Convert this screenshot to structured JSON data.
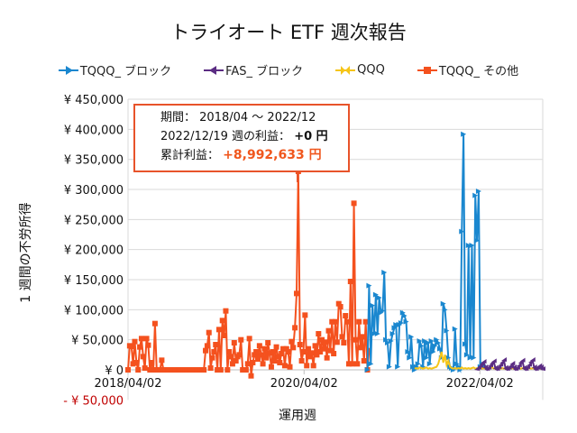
{
  "chart_data": {
    "type": "line",
    "title": "トライオート ETF 週次報告",
    "xlabel": "運用週",
    "ylabel": "1 週間の不労所得",
    "x_start": "2018/04/02",
    "x_end": "2022/12/19",
    "x_interval": "weekly",
    "x_ticks": [
      "2018/04/02",
      "2020/04/02",
      "2022/04/02"
    ],
    "ylim": [
      -50000,
      450000
    ],
    "y_ticks": [
      -50000,
      0,
      50000,
      100000,
      150000,
      200000,
      250000,
      300000,
      350000,
      400000,
      450000
    ],
    "y_tick_labels": [
      "- ¥ 50,000",
      "¥ 0",
      "¥ 50,000",
      "¥ 100,000",
      "¥ 150,000",
      "¥ 200,000",
      "¥ 250,000",
      "¥ 300,000",
      "¥ 350,000",
      "¥ 400,000",
      "¥ 450,000"
    ],
    "negative_tick_color": "#c00000",
    "grid": true,
    "legend": "top",
    "series": [
      {
        "name": "TQQQ_ ブロック",
        "color": "#1a87cf",
        "marker": "triangle-right",
        "start": "2020/12/21",
        "values": [
          0,
          140000,
          10000,
          107000,
          60000,
          125000,
          60000,
          120000,
          95000,
          98000,
          162000,
          50000,
          45000,
          5000,
          48000,
          60000,
          70000,
          75000,
          5000,
          75000,
          78000,
          95000,
          90000,
          80000,
          30000,
          20000,
          55000,
          5000,
          0,
          5000,
          10000,
          48000,
          40000,
          5000,
          48000,
          20000,
          45000,
          10000,
          48000,
          30000,
          40000,
          50000,
          45000,
          35000,
          20000,
          110000,
          100000,
          65000,
          20000,
          5000,
          3000,
          0,
          68000,
          10000,
          5000,
          0,
          230000,
          392000,
          43000,
          25000,
          207000,
          20000,
          207000,
          20000,
          290000,
          215000,
          297000,
          5000,
          10000,
          8000,
          5000
        ]
      },
      {
        "name": "FAS_ ブロック",
        "color": "#5b2c83",
        "marker": "triangle-left",
        "start": "2022/03/21",
        "values": [
          0,
          2000,
          5000,
          9000,
          12000,
          3000,
          0,
          2000,
          6000,
          10000,
          13000,
          2000,
          0,
          3000,
          7000,
          11000,
          15000,
          2000,
          0,
          2000,
          5000,
          9000,
          3000,
          0,
          2000,
          6000,
          11000,
          14000,
          2000,
          0,
          3000,
          7000,
          12000,
          15000,
          3000,
          0,
          2000,
          5000,
          3000,
          0
        ]
      },
      {
        "name": "QQQ",
        "color": "#f5c518",
        "marker": "bowtie",
        "start": "2021/07/05",
        "values": [
          2000,
          3000,
          2000,
          4000,
          3000,
          2000,
          3000,
          4000,
          2000,
          3000,
          2000,
          3000,
          4000,
          5000,
          10000,
          20000,
          30000,
          12000,
          25000,
          8000,
          15000,
          5000,
          3000,
          2000,
          3000,
          2000,
          3000,
          2000,
          4000,
          2000,
          3000,
          2000,
          3000,
          2000,
          3000,
          4000,
          2000,
          3000,
          2000,
          3000,
          2000,
          3000,
          2000,
          3000,
          2000,
          3000,
          4000,
          2000,
          3000,
          2000,
          3000,
          2000,
          3000,
          2000,
          3000,
          2000,
          3000,
          2000,
          3000,
          2000,
          3000,
          2000,
          3000,
          2000,
          3000,
          2000,
          3000,
          2000,
          3000,
          2000,
          3000,
          2000,
          3000,
          2000,
          3000,
          2000,
          2000
        ]
      },
      {
        "name": "TQQQ_ その他",
        "color": "#f4511e",
        "marker": "square",
        "start": "2018/04/02",
        "values": [
          0,
          40000,
          39000,
          10000,
          47000,
          12000,
          0,
          38000,
          52000,
          22000,
          3000,
          52000,
          41000,
          0,
          12000,
          0,
          77000,
          0,
          0,
          0,
          16000,
          0,
          0,
          0,
          0,
          0,
          0,
          0,
          0,
          0,
          0,
          0,
          0,
          0,
          0,
          0,
          0,
          0,
          0,
          0,
          0,
          0,
          0,
          0,
          0,
          0,
          32000,
          40000,
          62000,
          3000,
          20000,
          30000,
          42000,
          0,
          67000,
          0,
          82000,
          57000,
          98000,
          0,
          30000,
          22000,
          10000,
          45000,
          15000,
          22000,
          25000,
          50000,
          0,
          0,
          0,
          10000,
          52000,
          -10000,
          12000,
          25000,
          30000,
          18000,
          40000,
          25000,
          10000,
          35000,
          20000,
          45000,
          28000,
          5000,
          30000,
          15000,
          38000,
          22000,
          12000,
          27000,
          35000,
          7000,
          35000,
          30000,
          5000,
          47000,
          37000,
          70000,
          127000,
          330000,
          42000,
          15000,
          30000,
          91000,
          7000,
          35000,
          22000,
          28000,
          7000,
          40000,
          25000,
          60000,
          30000,
          50000,
          35000,
          46000,
          20000,
          65000,
          32000,
          80000,
          27000,
          80000,
          46000,
          110000,
          105000,
          55000,
          45000,
          90000,
          80000,
          10000,
          147000,
          10000,
          277000,
          50000,
          10000,
          80000,
          37000,
          55000,
          15000,
          80000,
          0,
          32000
        ]
      }
    ]
  },
  "annotation": {
    "period_label": "期間：",
    "period_value": "2018/04 ～ 2022/12",
    "week_label": "2022/12/19 週の利益：",
    "week_value": "+0 円",
    "total_label": "累計利益：",
    "total_value": "+8,992,633 円",
    "total_color": "#f0571e"
  }
}
